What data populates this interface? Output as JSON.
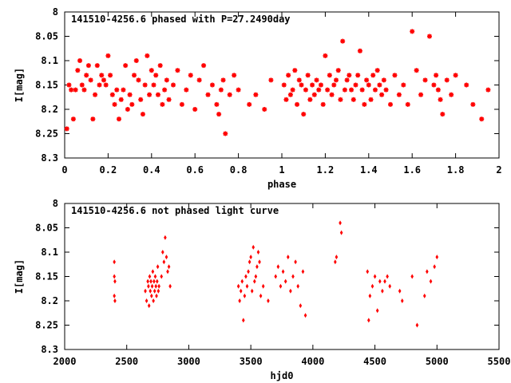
{
  "chart_data": [
    {
      "type": "scatter",
      "title": "141510-4256.6 phased with P=27.2490day",
      "xlabel": "phase",
      "ylabel": "I[mag]",
      "xlim": [
        0,
        2
      ],
      "ylim": [
        8.3,
        8.0
      ],
      "y_inverted": true,
      "x_ticks": [
        "0",
        "0.2",
        "0.4",
        "0.6",
        "0.8",
        "1",
        "1.2",
        "1.4",
        "1.6",
        "1.8",
        "2"
      ],
      "y_ticks": [
        "8",
        "8.05",
        "8.1",
        "8.15",
        "8.2",
        "8.25",
        "8.3"
      ],
      "marker_color": "#ff0000",
      "grid": false,
      "series": [
        {
          "x": [
            0.01,
            0.02,
            0.03,
            0.04,
            0.05,
            0.06,
            0.07,
            0.08,
            0.09,
            0.1,
            0.11,
            0.12,
            0.13,
            0.14,
            0.15,
            0.16,
            0.17,
            0.18,
            0.19,
            0.2,
            0.21,
            0.22,
            0.23,
            0.24,
            0.25,
            0.26,
            0.27,
            0.28,
            0.29,
            0.3,
            0.31,
            0.32,
            0.33,
            0.34,
            0.35,
            0.36,
            0.37,
            0.38,
            0.39,
            0.4,
            0.41,
            0.42,
            0.43,
            0.44,
            0.45,
            0.46,
            0.47,
            0.48,
            0.5,
            0.52,
            0.54,
            0.56,
            0.58,
            0.6,
            0.62,
            0.64,
            0.66,
            0.68,
            0.7,
            0.71,
            0.72,
            0.73,
            0.74,
            0.76,
            0.78,
            0.8,
            0.85,
            0.88,
            0.92,
            0.95,
            1.01,
            1.02,
            1.03,
            1.04,
            1.05,
            1.06,
            1.07,
            1.08,
            1.09,
            1.1,
            1.11,
            1.12,
            1.13,
            1.14,
            1.15,
            1.16,
            1.17,
            1.18,
            1.19,
            1.2,
            1.21,
            1.22,
            1.23,
            1.24,
            1.25,
            1.26,
            1.27,
            1.28,
            1.29,
            1.3,
            1.31,
            1.32,
            1.33,
            1.34,
            1.35,
            1.36,
            1.37,
            1.38,
            1.39,
            1.4,
            1.41,
            1.42,
            1.43,
            1.44,
            1.45,
            1.46,
            1.47,
            1.48,
            1.5,
            1.52,
            1.54,
            1.56,
            1.58,
            1.6,
            1.62,
            1.64,
            1.66,
            1.68,
            1.7,
            1.71,
            1.72,
            1.73,
            1.74,
            1.76,
            1.78,
            1.8,
            1.85,
            1.88,
            1.92,
            1.95
          ],
          "y": [
            8.24,
            8.15,
            8.16,
            8.22,
            8.16,
            8.12,
            8.1,
            8.15,
            8.16,
            8.13,
            8.11,
            8.14,
            8.22,
            8.17,
            8.11,
            8.15,
            8.13,
            8.14,
            8.15,
            8.09,
            8.13,
            8.17,
            8.19,
            8.16,
            8.22,
            8.18,
            8.16,
            8.11,
            8.2,
            8.17,
            8.19,
            8.13,
            8.1,
            8.14,
            8.18,
            8.21,
            8.15,
            8.09,
            8.17,
            8.12,
            8.15,
            8.13,
            8.17,
            8.11,
            8.19,
            8.16,
            8.14,
            8.18,
            8.15,
            8.12,
            8.19,
            8.16,
            8.13,
            8.2,
            8.14,
            8.11,
            8.17,
            8.15,
            8.19,
            8.21,
            8.16,
            8.14,
            8.25,
            8.17,
            8.13,
            8.16,
            8.19,
            8.17,
            8.2,
            8.14,
            8.15,
            8.18,
            8.13,
            8.17,
            8.16,
            8.12,
            8.19,
            8.14,
            8.15,
            8.21,
            8.16,
            8.13,
            8.18,
            8.15,
            8.17,
            8.14,
            8.16,
            8.15,
            8.19,
            8.09,
            8.16,
            8.13,
            8.17,
            8.15,
            8.14,
            8.12,
            8.18,
            8.06,
            8.16,
            8.14,
            8.13,
            8.16,
            8.18,
            8.15,
            8.13,
            8.08,
            8.16,
            8.19,
            8.14,
            8.15,
            8.18,
            8.13,
            8.16,
            8.12,
            8.15,
            8.17,
            8.14,
            8.16,
            8.19,
            8.13,
            8.17,
            8.15,
            8.19,
            8.04,
            8.12,
            8.17,
            8.14,
            8.05,
            8.15,
            8.13,
            8.16,
            8.18,
            8.21,
            8.14,
            8.17,
            8.13,
            8.15,
            8.19,
            8.22,
            8.16
          ],
          "marker": "star"
        }
      ]
    },
    {
      "type": "scatter",
      "title": "141510-4256.6 not phased light curve",
      "xlabel": "hjd0",
      "ylabel": "I[mag]",
      "xlim": [
        2000,
        5500
      ],
      "ylim": [
        8.3,
        8.0
      ],
      "y_inverted": true,
      "x_ticks": [
        "2000",
        "2500",
        "3000",
        "3500",
        "4000",
        "4500",
        "5000",
        "5500"
      ],
      "y_ticks": [
        "8",
        "8.05",
        "8.1",
        "8.15",
        "8.2",
        "8.25",
        "8.3"
      ],
      "marker_color": "#ff0000",
      "grid": false,
      "series": [
        {
          "x": [
            2400,
            2400,
            2405,
            2400,
            2405,
            2650,
            2660,
            2670,
            2675,
            2680,
            2685,
            2690,
            2695,
            2700,
            2705,
            2710,
            2715,
            2720,
            2725,
            2730,
            2735,
            2740,
            2745,
            2750,
            2755,
            2760,
            2780,
            2790,
            2800,
            2810,
            2820,
            2830,
            2840,
            2850,
            3400,
            3410,
            3420,
            3430,
            3440,
            3450,
            3460,
            3470,
            3480,
            3490,
            3500,
            3510,
            3520,
            3530,
            3540,
            3550,
            3560,
            3570,
            3580,
            3600,
            3640,
            3700,
            3720,
            3740,
            3760,
            3780,
            3800,
            3820,
            3840,
            3860,
            3880,
            3900,
            3920,
            3940,
            4180,
            4190,
            4220,
            4230,
            4440,
            4450,
            4460,
            4480,
            4500,
            4520,
            4540,
            4560,
            4580,
            4600,
            4620,
            4700,
            4720,
            4800,
            4840,
            4900,
            4920,
            4950,
            4980,
            5000
          ],
          "y": [
            8.12,
            8.19,
            8.2,
            8.15,
            8.16,
            8.18,
            8.2,
            8.16,
            8.17,
            8.21,
            8.15,
            8.18,
            8.16,
            8.19,
            8.17,
            8.14,
            8.2,
            8.16,
            8.18,
            8.15,
            8.17,
            8.19,
            8.16,
            8.13,
            8.18,
            8.17,
            8.15,
            8.1,
            8.12,
            8.07,
            8.11,
            8.14,
            8.13,
            8.17,
            8.17,
            8.2,
            8.18,
            8.16,
            8.24,
            8.19,
            8.15,
            8.17,
            8.14,
            8.12,
            8.11,
            8.18,
            8.09,
            8.16,
            8.15,
            8.13,
            8.1,
            8.12,
            8.19,
            8.17,
            8.2,
            8.15,
            8.13,
            8.17,
            8.14,
            8.16,
            8.11,
            8.18,
            8.15,
            8.12,
            8.17,
            8.21,
            8.14,
            8.23,
            8.12,
            8.11,
            8.04,
            8.06,
            8.14,
            8.24,
            8.19,
            8.17,
            8.15,
            8.22,
            8.16,
            8.18,
            8.16,
            8.15,
            8.17,
            8.18,
            8.2,
            8.15,
            8.25,
            8.19,
            8.14,
            8.16,
            8.13,
            8.11
          ]
        }
      ]
    }
  ]
}
